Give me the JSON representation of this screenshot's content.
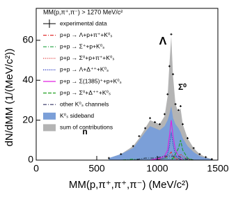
{
  "chart_data": {
    "type": "line",
    "title": "MM(p,π⁺,π⁻) > 1270 MeV/c²",
    "x_label": "MM(p,π⁺,π⁺,π⁻) (MeV/c²)",
    "y_label": "dN/dMM (1/(MeV/c²))",
    "annotations": [
      "Λ",
      "Σ⁰",
      "n"
    ],
    "xlim": [
      0,
      1500
    ],
    "xticks": [
      0,
      500,
      1000,
      1500
    ],
    "ylim": [
      0,
      76
    ],
    "yticks": [
      0,
      20,
      40,
      60
    ],
    "x": [
      600,
      700,
      800,
      850,
      900,
      940,
      980,
      1020,
      1060,
      1085,
      1100,
      1115,
      1130,
      1150,
      1175,
      1192,
      1210,
      1250,
      1300,
      1350,
      1400,
      1450
    ],
    "series": [
      {
        "name": "experimental data",
        "color": "#000000",
        "style": "points",
        "values": [
          1,
          3,
          7,
          12,
          16,
          21,
          19,
          18,
          23,
          33,
          47,
          63,
          43,
          28,
          25,
          27,
          18,
          11,
          6,
          3,
          1.5,
          0.5
        ]
      },
      {
        "name": "p+p → Λ+p+π⁺+K⁰ₛ",
        "color": "#e03030",
        "style": "dashdot",
        "values": [
          0,
          0,
          0,
          0,
          0,
          0,
          0,
          0.5,
          1,
          2,
          3,
          4,
          2,
          1,
          0.5,
          0,
          0,
          0,
          0,
          0,
          0,
          0
        ]
      },
      {
        "name": "p+p → Σ⁺+p+K⁰ₛ",
        "color": "#20a040",
        "style": "dashdot",
        "values": [
          0,
          0,
          0.5,
          0.5,
          1,
          1,
          1,
          1,
          1,
          1,
          1,
          1,
          1,
          1,
          1,
          0.5,
          0.5,
          0,
          0,
          0,
          0,
          0
        ]
      },
      {
        "name": "p+p → Σ⁰+p+π⁺+K⁰ₛ",
        "color": "#e03030",
        "style": "dotted",
        "values": [
          0,
          0,
          0,
          0,
          0,
          0,
          0,
          0,
          0,
          0,
          0,
          0,
          0,
          0,
          1,
          3,
          2,
          0.5,
          0,
          0,
          0,
          0
        ]
      },
      {
        "name": "p+p → Λ+Δ⁺⁺+K⁰ₛ",
        "color": "#2030c0",
        "style": "dotted",
        "values": [
          0,
          0,
          0,
          0,
          0,
          0,
          0,
          0.5,
          1,
          3,
          7,
          14,
          8,
          2,
          1,
          0,
          0,
          0,
          0,
          0,
          0,
          0
        ]
      },
      {
        "name": "p+p → Σ(1385)⁺+p+K⁰ₛ",
        "color": "#e020e0",
        "style": "solid",
        "values": [
          0,
          0,
          0,
          0,
          0,
          0,
          0.5,
          1,
          2,
          5,
          12,
          20,
          12,
          5,
          2,
          1,
          0,
          0,
          0,
          0,
          0,
          0
        ]
      },
      {
        "name": "p+p → Σ⁰+Δ⁺⁺+K⁰ₛ",
        "color": "#20a020",
        "style": "dashed",
        "values": [
          0,
          0,
          0,
          0,
          0,
          0,
          0,
          0,
          0,
          0,
          0,
          0,
          1,
          3,
          6,
          10,
          5,
          1,
          0,
          0,
          0,
          0
        ]
      },
      {
        "name": "other K⁰ₛ channels",
        "color": "#303060",
        "style": "dashdot",
        "values": [
          0,
          0,
          0,
          0.5,
          1,
          1,
          1,
          1.5,
          2,
          2,
          2,
          2,
          2,
          2,
          2,
          1.5,
          1,
          0.5,
          0,
          0,
          0,
          0
        ]
      },
      {
        "name": "K⁰ₛ sideband",
        "color": "#7b9fd8",
        "style": "area",
        "values": [
          1,
          3,
          6,
          10,
          14,
          17,
          16,
          15,
          17,
          20,
          23,
          27,
          21,
          18,
          16,
          14,
          11,
          7,
          4,
          2,
          1,
          0.5
        ]
      },
      {
        "name": "sum of contributions",
        "color": "#b4b4b4",
        "style": "area",
        "values": [
          1,
          3,
          7,
          11,
          16,
          20,
          19,
          18,
          22,
          32,
          48,
          62,
          42,
          28,
          24,
          26,
          18,
          11,
          6,
          3,
          1.5,
          0.5
        ]
      }
    ]
  }
}
